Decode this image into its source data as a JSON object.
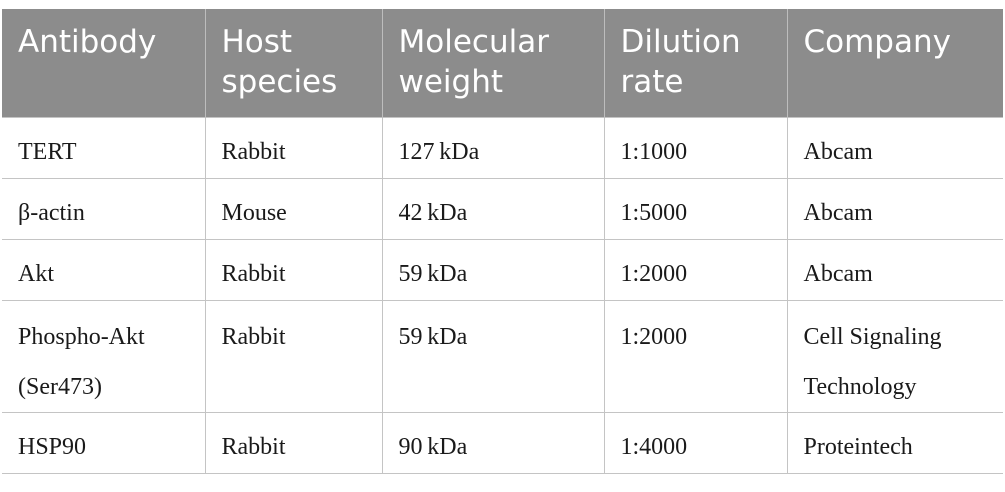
{
  "table": {
    "headers": [
      [
        "Antibody"
      ],
      [
        "Host",
        "species"
      ],
      [
        "Molecular",
        "weight"
      ],
      [
        "Dilution",
        "rate"
      ],
      [
        "Company"
      ]
    ],
    "rows": [
      {
        "antibody": [
          "TERT"
        ],
        "host": "Rabbit",
        "mw": "127 kDa",
        "dilution": "1:1000",
        "company": [
          "Abcam"
        ]
      },
      {
        "antibody": [
          "β-actin"
        ],
        "host": "Mouse",
        "mw": "42 kDa",
        "dilution": "1:5000",
        "company": [
          "Abcam"
        ]
      },
      {
        "antibody": [
          "Akt"
        ],
        "host": "Rabbit",
        "mw": "59 kDa",
        "dilution": "1:2000",
        "company": [
          "Abcam"
        ]
      },
      {
        "antibody": [
          "Phospho-Akt",
          "(Ser473)"
        ],
        "host": "Rabbit",
        "mw": "59 kDa",
        "dilution": "1:2000",
        "company": [
          "Cell Signaling",
          "Technology"
        ]
      },
      {
        "antibody": [
          "HSP90"
        ],
        "host": "Rabbit",
        "mw": "90 kDa",
        "dilution": "1:4000",
        "company": [
          "Proteintech"
        ]
      }
    ]
  }
}
